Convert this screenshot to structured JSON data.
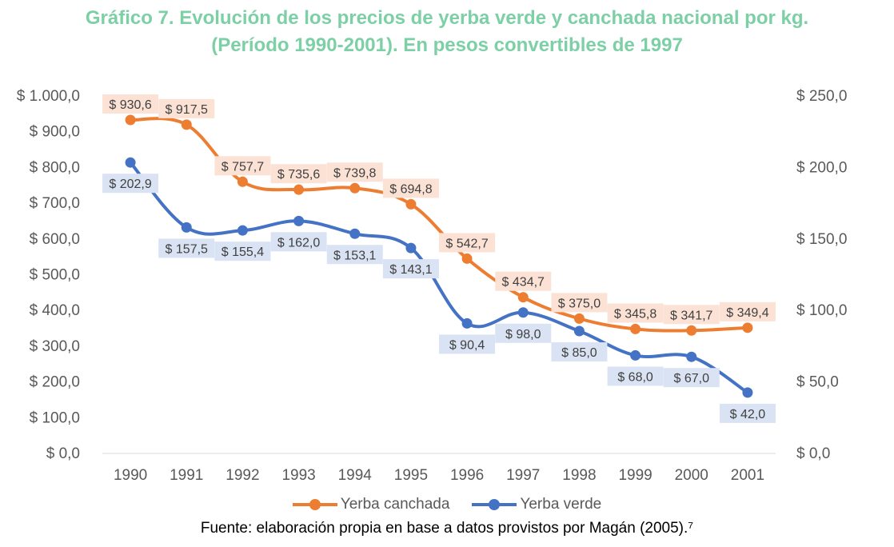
{
  "title_line1": "Gráfico 7. Evolución de los precios de yerba verde y canchada nacional por kg.",
  "title_line2": "(Período 1990-2001). En pesos convertibles de 1997",
  "source": "Fuente: elaboración propia en base a datos provistos por Magán (2005).⁷",
  "chart_data": {
    "type": "line",
    "categories": [
      "1990",
      "1991",
      "1992",
      "1993",
      "1994",
      "1995",
      "1996",
      "1997",
      "1998",
      "1999",
      "2000",
      "2001"
    ],
    "y_left": {
      "ylim": [
        0,
        1000
      ],
      "ticks": [
        0,
        100,
        200,
        300,
        400,
        500,
        600,
        700,
        800,
        900,
        1000
      ],
      "tick_labels": [
        "$ 0,0",
        "$ 100,0",
        "$ 200,0",
        "$ 300,0",
        "$ 400,0",
        "$ 500,0",
        "$ 600,0",
        "$ 700,0",
        "$ 800,0",
        "$ 900,0",
        "$ 1.000,0"
      ]
    },
    "y_right": {
      "ylim": [
        0,
        250
      ],
      "ticks": [
        0,
        50,
        100,
        150,
        200,
        250
      ],
      "tick_labels": [
        "$ 0,0",
        "$ 50,0",
        "$ 100,0",
        "$ 150,0",
        "$ 200,0",
        "$ 250,0"
      ]
    },
    "series": [
      {
        "name": "Yerba canchada",
        "axis": "left",
        "color": "#ed7d31",
        "label_bg": "#fbe2d5",
        "values": [
          930.6,
          917.5,
          757.7,
          735.6,
          739.8,
          694.8,
          542.7,
          434.7,
          375.0,
          345.8,
          341.7,
          349.4
        ],
        "labels": [
          "$ 930,6",
          "$ 917,5",
          "$ 757,7",
          "$ 735,6",
          "$ 739,8",
          "$ 694,8",
          "$ 542,7",
          "$ 434,7",
          "$ 375,0",
          "$ 345,8",
          "$ 341,7",
          "$ 349,4"
        ]
      },
      {
        "name": "Yerba verde",
        "axis": "right",
        "color": "#4472c4",
        "label_bg": "#dae3f3",
        "values": [
          202.9,
          157.5,
          155.4,
          162.0,
          153.1,
          143.1,
          90.4,
          98.0,
          85.0,
          68.0,
          67.0,
          42.0
        ],
        "labels": [
          "$ 202,9",
          "$ 157,5",
          "$ 155,4",
          "$ 162,0",
          "$ 153,1",
          "$ 143,1",
          "$ 90,4",
          "$ 98,0",
          "$ 85,0",
          "$ 68,0",
          "$ 67,0",
          "$ 42,0"
        ]
      }
    ],
    "grid": false,
    "legend": "bottom"
  }
}
